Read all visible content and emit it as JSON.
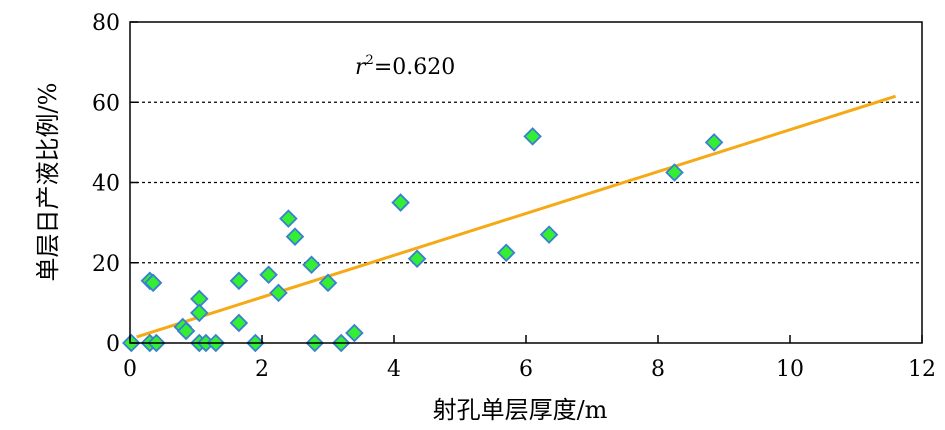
{
  "chart_data": {
    "type": "scatter",
    "xlabel": "射孔单层厚度/m",
    "ylabel": "单层日产液比例/%",
    "xlim": [
      0,
      12
    ],
    "ylim": [
      0,
      80
    ],
    "xticks": [
      "0",
      "2",
      "4",
      "6",
      "8",
      "10",
      "12"
    ],
    "yticks": [
      "0",
      "20",
      "40",
      "60",
      "80"
    ],
    "grid": "horizontal dotted at 20, 40, 60",
    "annotation": {
      "r_symbol": "r",
      "sup": "2",
      "value": "=0.620"
    },
    "points": [
      {
        "x": 0.02,
        "y": 0
      },
      {
        "x": 0.3,
        "y": 15.5
      },
      {
        "x": 0.35,
        "y": 15
      },
      {
        "x": 0.3,
        "y": 0
      },
      {
        "x": 0.4,
        "y": 0
      },
      {
        "x": 0.8,
        "y": 4
      },
      {
        "x": 0.85,
        "y": 3
      },
      {
        "x": 1.05,
        "y": 11
      },
      {
        "x": 1.05,
        "y": 7.5
      },
      {
        "x": 1.05,
        "y": 0
      },
      {
        "x": 1.15,
        "y": 0
      },
      {
        "x": 1.3,
        "y": 0
      },
      {
        "x": 1.65,
        "y": 15.5
      },
      {
        "x": 1.65,
        "y": 5
      },
      {
        "x": 1.9,
        "y": 0
      },
      {
        "x": 2.1,
        "y": 17
      },
      {
        "x": 2.25,
        "y": 12.5
      },
      {
        "x": 2.4,
        "y": 31
      },
      {
        "x": 2.5,
        "y": 26.5
      },
      {
        "x": 2.75,
        "y": 19.5
      },
      {
        "x": 2.8,
        "y": 0
      },
      {
        "x": 3.0,
        "y": 15
      },
      {
        "x": 3.2,
        "y": 0
      },
      {
        "x": 3.4,
        "y": 2.5
      },
      {
        "x": 4.1,
        "y": 35
      },
      {
        "x": 4.35,
        "y": 21
      },
      {
        "x": 5.7,
        "y": 22.5
      },
      {
        "x": 6.1,
        "y": 51.5
      },
      {
        "x": 6.35,
        "y": 27
      },
      {
        "x": 8.25,
        "y": 42.5
      },
      {
        "x": 8.85,
        "y": 50
      }
    ],
    "trendline": {
      "x": [
        0.1,
        11.6
      ],
      "y": [
        1.5,
        61.5
      ]
    }
  },
  "colors": {
    "marker_fill": "#33ee33",
    "marker_stroke": "#3b7fd1",
    "trendline": "#f5a915",
    "grid": "#000000",
    "axis": "#000000"
  }
}
